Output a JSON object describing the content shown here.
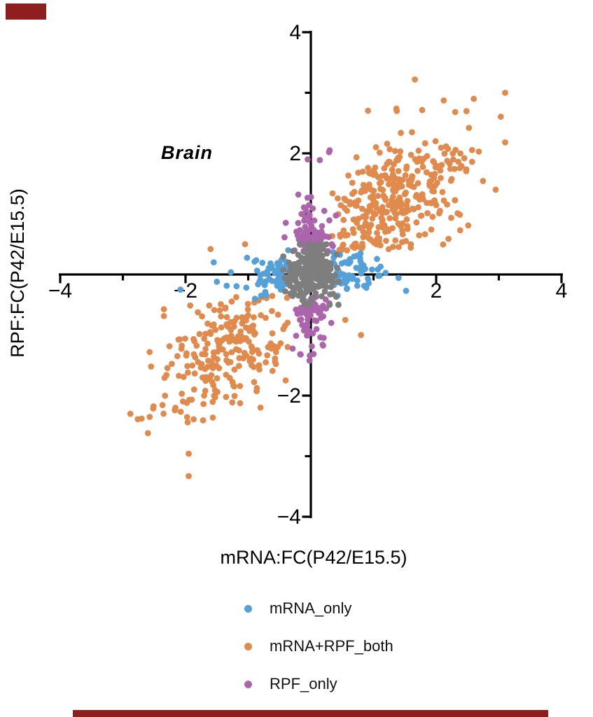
{
  "colors": {
    "background": "#ffffff",
    "axis": "#000000",
    "text": "#111111",
    "redaction": "#8f1f1f",
    "blue": "#55A0D8",
    "orange": "#E08A4E",
    "purple": "#AC64AC",
    "gray": "#7E7E7E"
  },
  "legend": {
    "items": [
      {
        "label": "mRNA_only",
        "color": "#55A0D8"
      },
      {
        "label": "mRNA+RPF_both",
        "color": "#E08A4E"
      },
      {
        "label": "RPF_only",
        "color": "#AC64AC"
      }
    ]
  },
  "chart_data": {
    "type": "scatter",
    "title": "Brain",
    "xlabel": "mRNA:FC(P42/E15.5)",
    "ylabel": "RPF:FC(P42/E15.5)",
    "xlim": [
      -4,
      4
    ],
    "ylim": [
      -4,
      4
    ],
    "grid": false,
    "legend_position": "bottom",
    "axes": {
      "x": {
        "major": [
          -4,
          -2,
          2,
          4
        ],
        "minor": [
          -3,
          -1,
          1,
          3
        ],
        "labels": [
          "−4",
          "−2",
          "2",
          "4"
        ]
      },
      "y": {
        "major": [
          4,
          2,
          -2,
          -4
        ],
        "minor": [
          3,
          1,
          -1,
          -3
        ],
        "labels": [
          "4",
          "2",
          "−2",
          "−4"
        ]
      }
    },
    "series": [
      {
        "id": "mrna-rpf-both",
        "name": "mRNA+RPF_both",
        "color": "#E08A4E",
        "description": "significant in both; diagonal lobes in Q1 and Q3, r≈0.85",
        "components": [
          {
            "type": "diag",
            "n": 335,
            "cx": 1.18,
            "cy": 1.08,
            "along": 0.58,
            "across": 0.4,
            "slope": 0.93,
            "minAbs": 0.34,
            "xr": [
              0.34,
              3.2
            ],
            "yr": [
              0.34,
              3.3
            ]
          },
          {
            "type": "diag",
            "n": 225,
            "cx": -1.3,
            "cy": -1.22,
            "along": 0.52,
            "across": 0.4,
            "slope": 0.93,
            "minAbs": 0.34,
            "xr": [
              -2.9,
              -0.34
            ],
            "yr": [
              -3.0,
              -0.34
            ]
          }
        ],
        "outliers": [
          [
            1.66,
            3.22
          ],
          [
            3.1,
            3.0
          ],
          [
            -1.95,
            -3.33
          ],
          [
            -1.95,
            -2.96
          ],
          [
            -2.7,
            -2.38
          ],
          [
            -2.88,
            -2.3
          ],
          [
            -2.6,
            -2.62
          ],
          [
            3.1,
            2.18
          ],
          [
            2.6,
            2.9
          ],
          [
            2.95,
            1.4
          ],
          [
            -2.55,
            -1.52
          ],
          [
            -1.6,
            0.42
          ],
          [
            0.8,
            -1.0
          ],
          [
            -1.05,
            0.5
          ],
          [
            0.55,
            -0.75
          ]
        ]
      },
      {
        "id": "mrna-only",
        "name": "mRNA_only",
        "color": "#55A0D8",
        "description": "horizontal band along x-axis, |y|<0.4",
        "components": [
          {
            "type": "hband",
            "n": 125,
            "off": 0.36,
            "sx": 0.4,
            "xmax": 1.62,
            "sy": 0.16,
            "ymax": 0.4,
            "pRight": 0.52
          }
        ],
        "outliers": [
          [
            -2.08,
            -0.25
          ],
          [
            1.52,
            -0.27
          ],
          [
            -1.55,
            0.2
          ],
          [
            -1.5,
            -0.12
          ]
        ]
      },
      {
        "id": "rpf-only",
        "name": "RPF_only",
        "color": "#AC64AC",
        "description": "vertical band along y-axis, |x|<0.42",
        "components": [
          {
            "type": "vband",
            "n": 160,
            "off": 0.36,
            "sy": 0.48,
            "ymaxUp": 1.98,
            "ymaxDown": 1.6,
            "sx": 0.15,
            "xmax": 0.42,
            "pUp": 0.55
          }
        ],
        "outliers": [
          [
            0.29,
            2.02
          ],
          [
            -0.05,
            1.9
          ],
          [
            0.3,
            2.05
          ]
        ]
      },
      {
        "id": "not-significant",
        "name": "unlabeled_center",
        "color": "#7E7E7E",
        "description": "dense gray block at origin",
        "components": [
          {
            "type": "blob",
            "n": 235,
            "sx": 0.21,
            "xmax": 0.44,
            "sy": 0.25,
            "ymax": 0.5
          }
        ],
        "outliers": []
      }
    ]
  }
}
